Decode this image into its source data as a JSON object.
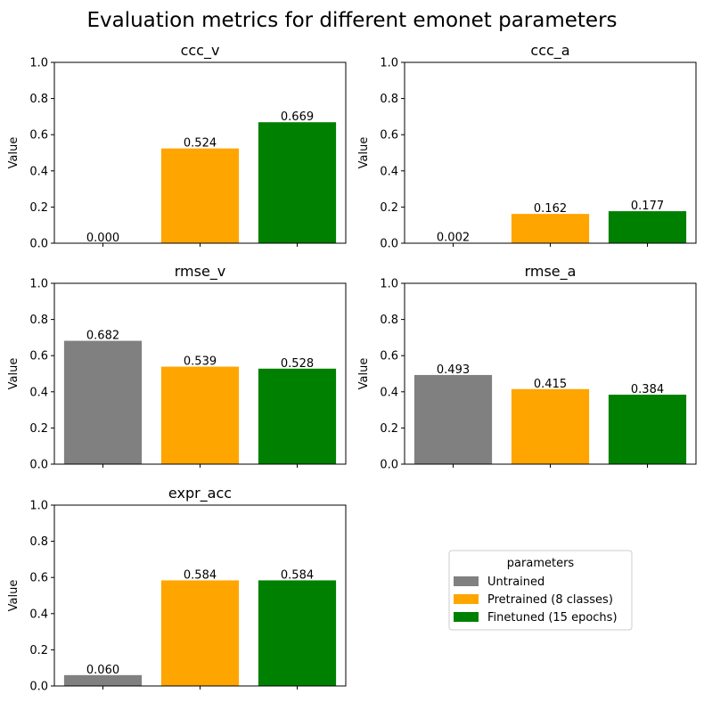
{
  "figure_title": "Evaluation metrics for different emonet parameters",
  "colors": {
    "untrained": "#808080",
    "pretrained": "#FFA500",
    "finetuned": "#008000"
  },
  "legend": {
    "title": "parameters",
    "entries": [
      "Untrained",
      "Pretrained (8 classes)",
      "Finetuned (15 epochs)"
    ],
    "placement": "bottom-right panel, centered"
  },
  "chart_data": [
    {
      "type": "bar",
      "title": "ccc_v",
      "ylabel": "Value",
      "ylim": [
        0,
        1.0
      ],
      "yticks": [
        "0.0",
        "0.2",
        "0.4",
        "0.6",
        "0.8",
        "1.0"
      ],
      "categories": [
        "Untrained",
        "Pretrained (8 classes)",
        "Finetuned (15 epochs)"
      ],
      "values": [
        0.0,
        0.524,
        0.669
      ],
      "labels": [
        "0.000",
        "0.524",
        "0.669"
      ]
    },
    {
      "type": "bar",
      "title": "ccc_a",
      "ylabel": "Value",
      "ylim": [
        0,
        1.0
      ],
      "yticks": [
        "0.0",
        "0.2",
        "0.4",
        "0.6",
        "0.8",
        "1.0"
      ],
      "categories": [
        "Untrained",
        "Pretrained (8 classes)",
        "Finetuned (15 epochs)"
      ],
      "values": [
        0.002,
        0.162,
        0.177
      ],
      "labels": [
        "0.002",
        "0.162",
        "0.177"
      ]
    },
    {
      "type": "bar",
      "title": "rmse_v",
      "ylabel": "Value",
      "ylim": [
        0,
        1.0
      ],
      "yticks": [
        "0.0",
        "0.2",
        "0.4",
        "0.6",
        "0.8",
        "1.0"
      ],
      "categories": [
        "Untrained",
        "Pretrained (8 classes)",
        "Finetuned (15 epochs)"
      ],
      "values": [
        0.682,
        0.539,
        0.528
      ],
      "labels": [
        "0.682",
        "0.539",
        "0.528"
      ]
    },
    {
      "type": "bar",
      "title": "rmse_a",
      "ylabel": "Value",
      "ylim": [
        0,
        1.0
      ],
      "yticks": [
        "0.0",
        "0.2",
        "0.4",
        "0.6",
        "0.8",
        "1.0"
      ],
      "categories": [
        "Untrained",
        "Pretrained (8 classes)",
        "Finetuned (15 epochs)"
      ],
      "values": [
        0.493,
        0.415,
        0.384
      ],
      "labels": [
        "0.493",
        "0.415",
        "0.384"
      ]
    },
    {
      "type": "bar",
      "title": "expr_acc",
      "ylabel": "Value",
      "ylim": [
        0,
        1.0
      ],
      "yticks": [
        "0.0",
        "0.2",
        "0.4",
        "0.6",
        "0.8",
        "1.0"
      ],
      "categories": [
        "Untrained",
        "Pretrained (8 classes)",
        "Finetuned (15 epochs)"
      ],
      "values": [
        0.06,
        0.584,
        0.584
      ],
      "labels": [
        "0.060",
        "0.584",
        "0.584"
      ]
    }
  ]
}
